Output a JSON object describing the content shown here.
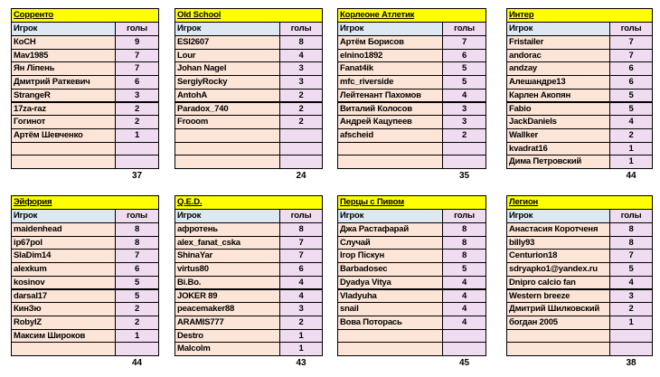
{
  "header": [
    "Игрок",
    "голы"
  ],
  "tables": [
    {
      "title": "Сорренто",
      "rows": [
        [
          "КоСН",
          9
        ],
        [
          "Mav1985",
          7
        ],
        [
          "Ян Ліпень",
          7
        ],
        [
          "Дмитрий Раткевич",
          6
        ],
        [
          "StrangeR",
          3
        ],
        [
          "17za-raz",
          2
        ],
        [
          "Гогинот",
          2
        ],
        [
          "Артём Шевченко",
          1
        ]
      ],
      "total": 37
    },
    {
      "title": "Old School",
      "rows": [
        [
          "ESI2607",
          8
        ],
        [
          "Lour",
          4
        ],
        [
          "Johan Nagel",
          3
        ],
        [
          "SergiyRocky",
          3
        ],
        [
          "AntohA",
          2
        ],
        [
          "Paradox_740",
          2
        ],
        [
          "Frooom",
          2
        ]
      ],
      "total": 24
    },
    {
      "title": "Корлеоне Атлетик",
      "rows": [
        [
          "Артём Борисов",
          7
        ],
        [
          "elnino1892",
          6
        ],
        [
          "Fanat4ik",
          5
        ],
        [
          "mfc_riverside",
          5
        ],
        [
          "Лейтенант Пахомов",
          4
        ],
        [
          "Виталий Колосов",
          3
        ],
        [
          "Андрей Кацупеев",
          3
        ],
        [
          "afscheid",
          2
        ]
      ],
      "total": 35
    },
    {
      "title": "Интер",
      "rows": [
        [
          "Fristailer",
          7
        ],
        [
          "andorac",
          7
        ],
        [
          "andzay",
          6
        ],
        [
          "Алешандре13",
          6
        ],
        [
          "Карлен Акопян",
          5
        ],
        [
          "Fabio",
          5
        ],
        [
          "JackDaniels",
          4
        ],
        [
          "Wallker",
          2
        ],
        [
          "kvadrat16",
          1
        ],
        [
          "Дима Петровский",
          1
        ]
      ],
      "total": 44
    },
    {
      "title": "Эйфория",
      "rows": [
        [
          "maidenhead",
          8
        ],
        [
          "ip67pol",
          8
        ],
        [
          "SlaDim14",
          7
        ],
        [
          "alexkum",
          6
        ],
        [
          "kosinov",
          5
        ],
        [
          "darsal17",
          5
        ],
        [
          "КинЗю",
          2
        ],
        [
          "RobyIZ",
          2
        ],
        [
          "Максим Широков",
          1
        ]
      ],
      "total": 44
    },
    {
      "title": "Q.E.D.",
      "rows": [
        [
          "афротень",
          8
        ],
        [
          "alex_fanat_cska",
          7
        ],
        [
          "ShinaYar",
          7
        ],
        [
          "virtus80",
          6
        ],
        [
          "Bi.Bo.",
          4
        ],
        [
          "JOKER 89",
          4
        ],
        [
          "peacemaker88",
          3
        ],
        [
          "ARAMIS777",
          2
        ],
        [
          "Destro",
          1
        ],
        [
          "Malcolm",
          1
        ]
      ],
      "total": 43
    },
    {
      "title": "Перцы с Пивом",
      "rows": [
        [
          "Джа Растафарай",
          8
        ],
        [
          "Случай",
          8
        ],
        [
          "Ігор Піскун",
          8
        ],
        [
          "Barbadosec",
          5
        ],
        [
          "Dyadya Vitya",
          4
        ],
        [
          "Vladyuha",
          4
        ],
        [
          "snail",
          4
        ],
        [
          "Вова Поторась",
          4
        ]
      ],
      "total": 45
    },
    {
      "title": "Легион",
      "rows": [
        [
          "Анастасия Коротченя",
          8
        ],
        [
          "billy93",
          8
        ],
        [
          "Centurion18",
          7
        ],
        [
          "sdryapko1@yandex.ru",
          5
        ],
        [
          "Dnipro calcio fan",
          4
        ],
        [
          "Western breeze",
          3
        ],
        [
          "Дмитрий Шилковский",
          2
        ],
        [
          "богдан 2005",
          1
        ]
      ],
      "total": 38
    }
  ]
}
